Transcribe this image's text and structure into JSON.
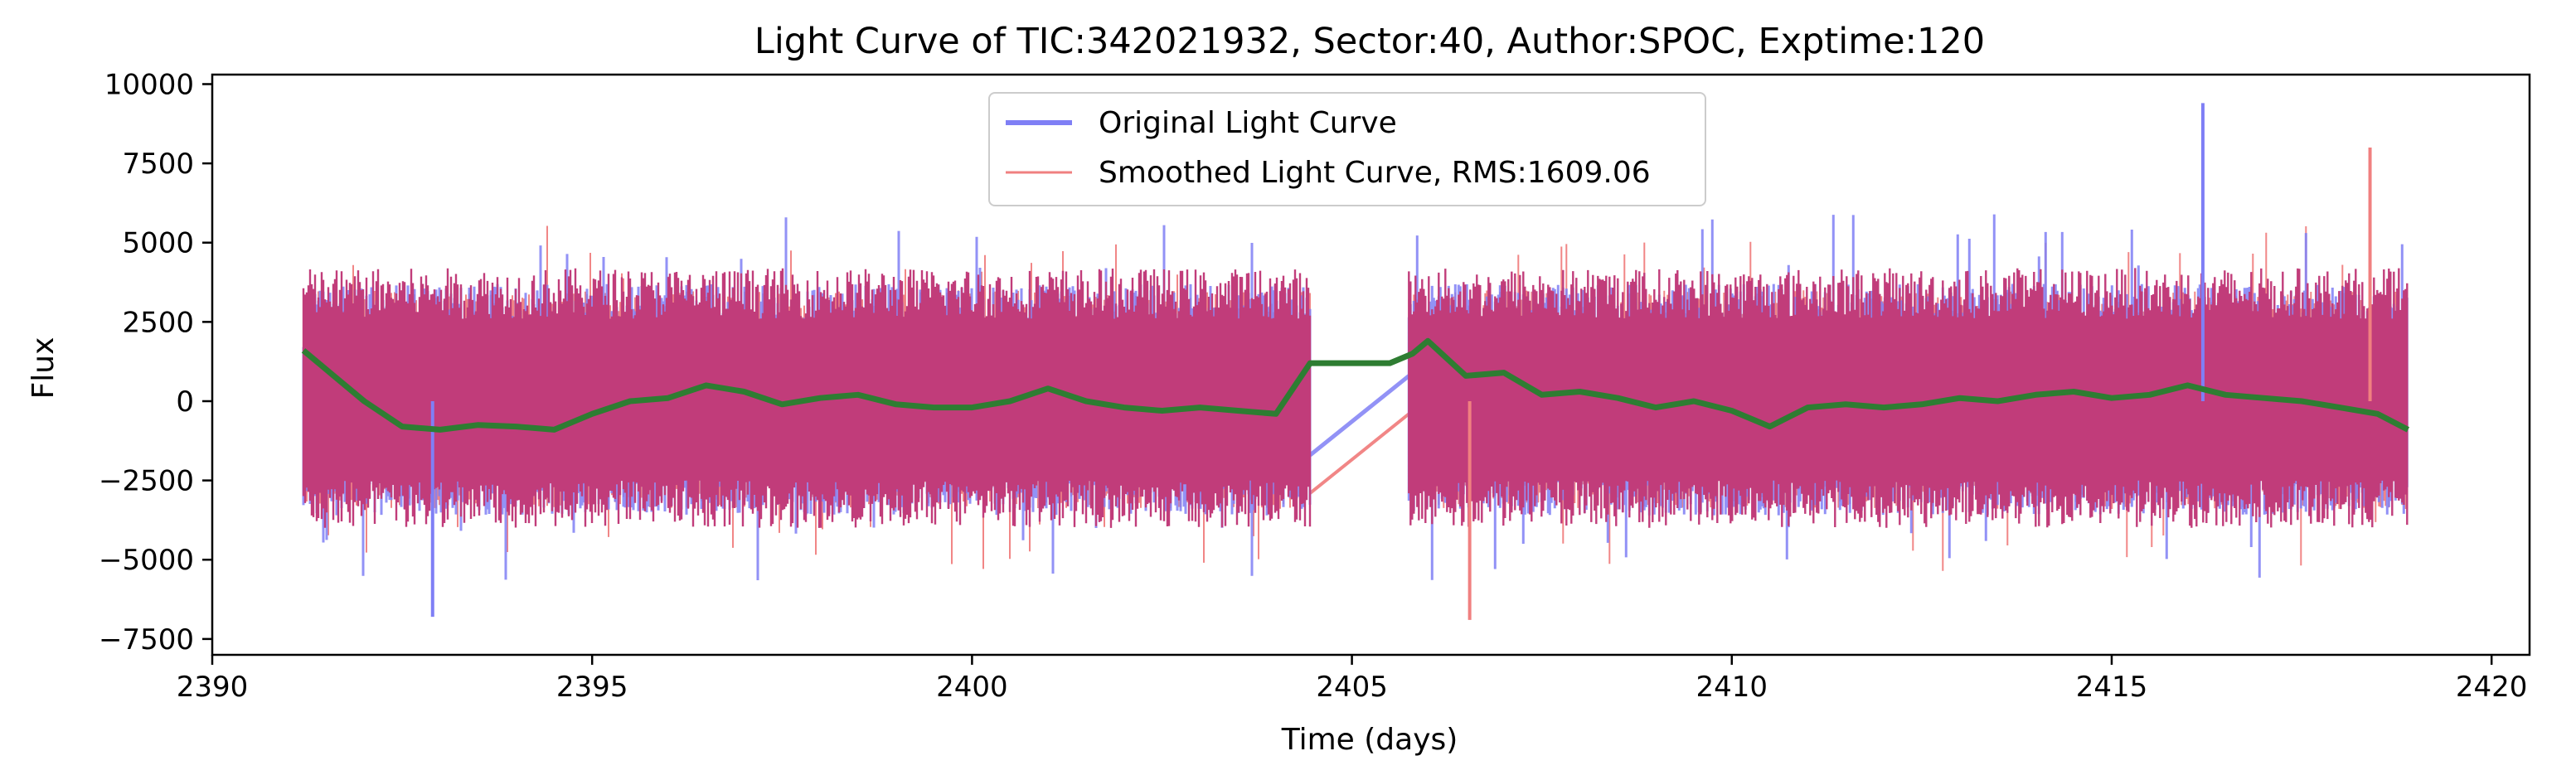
{
  "chart_data": {
    "type": "line",
    "title": "Light Curve of TIC:342021932, Sector:40, Author:SPOC, Exptime:120",
    "xlabel": "Time (days)",
    "ylabel": "Flux",
    "xlim": [
      2390,
      2420.5
    ],
    "ylim": [
      -8000,
      10300
    ],
    "xticks": [
      2390,
      2395,
      2400,
      2405,
      2410,
      2415,
      2420
    ],
    "xtick_labels": [
      "2390",
      "2395",
      "2400",
      "2405",
      "2410",
      "2415",
      "2420"
    ],
    "yticks": [
      -7500,
      -5000,
      -2500,
      0,
      2500,
      5000,
      7500,
      10000
    ],
    "ytick_labels": [
      "−7500",
      "−5000",
      "−2500",
      "0",
      "2500",
      "5000",
      "7500",
      "10000"
    ],
    "grid": false,
    "legend_position": "top-center",
    "series": [
      {
        "name": "Original Light Curve",
        "color": "#7f7ff5",
        "style": "noisy-band",
        "segments": [
          {
            "x_start": 2391.2,
            "x_end": 2404.45,
            "band_low": -3600,
            "band_high": 3700
          },
          {
            "x_start": 2405.75,
            "x_end": 2418.9,
            "band_low": -3600,
            "band_high": 3700
          }
        ],
        "gap_line": {
          "x": [
            2404.45,
            2405.75
          ],
          "y": [
            -1700,
            800
          ]
        },
        "extremes": {
          "min": -6800,
          "max": 9400
        }
      },
      {
        "name": "Smoothed Light Curve, RMS:1609.06",
        "color": "#f08080",
        "style": "noisy-band",
        "segments": [
          {
            "x_start": 2391.2,
            "x_end": 2404.45,
            "band_low": -3400,
            "band_high": 3500
          },
          {
            "x_start": 2405.75,
            "x_end": 2418.9,
            "band_low": -3400,
            "band_high": 3500
          }
        ],
        "gap_line": {
          "x": [
            2404.45,
            2405.75
          ],
          "y": [
            -2900,
            -400
          ]
        },
        "extremes": {
          "min": -6900,
          "max": 8000
        }
      },
      {
        "color": "#c13c7a",
        "style": "overlap-band",
        "segments": [
          {
            "x_start": 2391.2,
            "x_end": 2404.45
          },
          {
            "x_start": 2405.75,
            "x_end": 2418.9
          }
        ]
      },
      {
        "color": "#2e7d32",
        "style": "trend",
        "x": [
          2391.2,
          2391.6,
          2392.0,
          2392.5,
          2393.0,
          2393.5,
          2394.0,
          2394.5,
          2395.0,
          2395.5,
          2396.0,
          2396.5,
          2397.0,
          2397.5,
          2398.0,
          2398.5,
          2399.0,
          2399.5,
          2400.0,
          2400.5,
          2401.0,
          2401.5,
          2402.0,
          2402.5,
          2403.0,
          2403.5,
          2404.0,
          2404.45,
          2405.0,
          2405.5,
          2405.8,
          2406.0,
          2406.5,
          2407.0,
          2407.5,
          2408.0,
          2408.5,
          2409.0,
          2409.5,
          2410.0,
          2410.5,
          2411.0,
          2411.5,
          2412.0,
          2412.5,
          2413.0,
          2413.5,
          2414.0,
          2414.5,
          2415.0,
          2415.5,
          2416.0,
          2416.5,
          2417.0,
          2417.5,
          2418.0,
          2418.5,
          2418.9
        ],
        "y": [
          1600,
          800,
          0,
          -800,
          -900,
          -750,
          -800,
          -900,
          -400,
          0,
          100,
          500,
          300,
          -100,
          100,
          200,
          -100,
          -200,
          -200,
          0,
          400,
          0,
          -200,
          -300,
          -200,
          -300,
          -400,
          1200,
          1200,
          1200,
          1500,
          1900,
          800,
          900,
          200,
          300,
          100,
          -200,
          0,
          -300,
          -800,
          -200,
          -100,
          -200,
          -100,
          100,
          0,
          200,
          300,
          100,
          200,
          500,
          200,
          100,
          0,
          -200,
          -400,
          -900
        ]
      }
    ]
  },
  "legend": {
    "items": [
      {
        "label": "Original Light Curve",
        "color": "#7f7ff5"
      },
      {
        "label": "Smoothed Light Curve, RMS:1609.06",
        "color": "#f08080"
      }
    ]
  }
}
